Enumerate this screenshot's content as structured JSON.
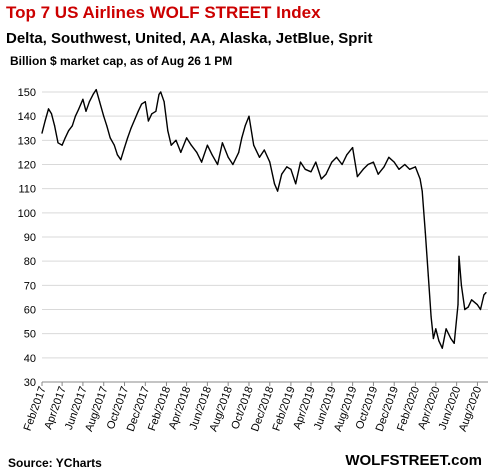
{
  "header": {
    "title": "Top 7 US Airlines WOLF STREET Index",
    "subtitle": "Delta, Southwest, United, AA, Alaska, JetBlue, Sprit",
    "description": "Billion $ market cap, as of Aug 26 1 PM"
  },
  "footer": {
    "source": "Source: YCharts",
    "brand": "WOLFSTREET.com"
  },
  "colors": {
    "line": "#000000",
    "grid": "#d9d9d9",
    "title": "#cc0000"
  },
  "chart_data": {
    "type": "line",
    "xlabel": "",
    "ylabel": "",
    "ylim": [
      30,
      150
    ],
    "yticks": [
      30,
      40,
      50,
      60,
      70,
      80,
      90,
      100,
      110,
      120,
      130,
      140,
      150
    ],
    "xlim": [
      "2017-02",
      "2020-09"
    ],
    "xtick_labels": [
      "Feb/2017",
      "Apr/2017",
      "Jun/2017",
      "Aug/2017",
      "Oct/2017",
      "Dec/2017",
      "Feb/2018",
      "Apr/2018",
      "Jun/2018",
      "Aug/2018",
      "Oct/2018",
      "Dec/2018",
      "Feb/2019",
      "Apr/2019",
      "Jun/2019",
      "Aug/2019",
      "Oct/2019",
      "Dec/2019",
      "Feb/2020",
      "Apr/2020",
      "Jun/2020",
      "Aug/2020"
    ],
    "grid": true,
    "legend": "none",
    "series": [
      {
        "x": [
          "2017-02-01",
          "2017-02-10",
          "2017-02-20",
          "2017-03-01",
          "2017-03-10",
          "2017-03-20",
          "2017-04-01",
          "2017-04-10",
          "2017-04-20",
          "2017-05-01",
          "2017-05-10",
          "2017-05-20",
          "2017-06-01",
          "2017-06-10",
          "2017-06-20",
          "2017-07-01",
          "2017-07-10",
          "2017-07-20",
          "2017-08-01",
          "2017-08-10",
          "2017-08-20",
          "2017-09-01",
          "2017-09-10",
          "2017-09-20",
          "2017-10-01",
          "2017-10-10",
          "2017-10-20",
          "2017-11-01",
          "2017-11-10",
          "2017-11-20",
          "2017-12-01",
          "2017-12-10",
          "2017-12-20",
          "2018-01-01",
          "2018-01-10",
          "2018-01-15",
          "2018-01-25",
          "2018-02-05",
          "2018-02-15",
          "2018-03-01",
          "2018-03-15",
          "2018-04-01",
          "2018-04-15",
          "2018-05-01",
          "2018-05-15",
          "2018-06-01",
          "2018-06-15",
          "2018-07-01",
          "2018-07-15",
          "2018-08-01",
          "2018-08-15",
          "2018-09-01",
          "2018-09-10",
          "2018-09-20",
          "2018-10-01",
          "2018-10-15",
          "2018-11-01",
          "2018-11-15",
          "2018-12-01",
          "2018-12-15",
          "2018-12-24",
          "2019-01-05",
          "2019-01-20",
          "2019-02-01",
          "2019-02-15",
          "2019-03-01",
          "2019-03-15",
          "2019-04-01",
          "2019-04-15",
          "2019-05-01",
          "2019-05-15",
          "2019-06-01",
          "2019-06-15",
          "2019-07-01",
          "2019-07-15",
          "2019-08-01",
          "2019-08-15",
          "2019-09-01",
          "2019-09-15",
          "2019-10-01",
          "2019-10-15",
          "2019-11-01",
          "2019-11-15",
          "2019-12-01",
          "2019-12-15",
          "2020-01-01",
          "2020-01-15",
          "2020-02-01",
          "2020-02-15",
          "2020-02-21",
          "2020-03-01",
          "2020-03-10",
          "2020-03-18",
          "2020-03-25",
          "2020-04-01",
          "2020-04-10",
          "2020-04-20",
          "2020-05-01",
          "2020-05-15",
          "2020-05-25",
          "2020-06-05",
          "2020-06-08",
          "2020-06-15",
          "2020-06-25",
          "2020-07-05",
          "2020-07-15",
          "2020-08-01",
          "2020-08-10",
          "2020-08-20",
          "2020-08-26"
        ],
        "y": [
          133,
          138,
          143,
          141,
          136,
          129,
          128,
          131,
          134,
          136,
          140,
          143,
          147,
          142,
          146,
          149,
          151,
          146,
          140,
          136,
          131,
          128,
          124,
          122,
          127,
          131,
          135,
          139,
          142,
          145,
          146,
          138,
          141,
          142,
          149,
          150,
          146,
          134,
          128,
          130,
          125,
          131,
          128,
          125,
          121,
          128,
          124,
          120,
          129,
          123,
          120,
          125,
          131,
          136,
          140,
          128,
          123,
          126,
          121,
          112,
          109,
          116,
          119,
          118,
          112,
          121,
          118,
          117,
          121,
          114,
          116,
          121,
          123,
          120,
          124,
          127,
          115,
          118,
          120,
          121,
          116,
          119,
          123,
          121,
          118,
          120,
          118,
          119,
          114,
          109,
          92,
          74,
          57,
          48,
          52,
          47,
          44,
          52,
          48,
          46,
          62,
          82,
          70,
          60,
          61,
          64,
          62,
          60,
          66,
          67
        ]
      }
    ]
  }
}
